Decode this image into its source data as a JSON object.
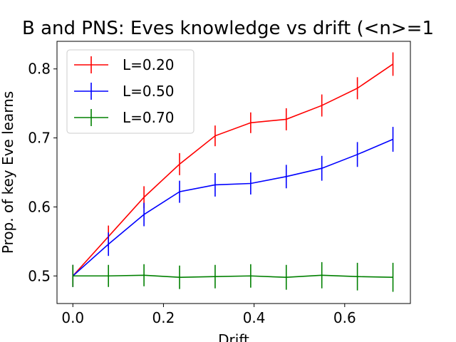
{
  "chart_data": {
    "type": "line",
    "title": "B and PNS: Eves knowledge vs drift (<n>=1",
    "xlabel": "Drift",
    "ylabel": "Prop. of key Eve learns",
    "xlim": [
      -0.035,
      0.745
    ],
    "ylim": [
      0.46,
      0.84
    ],
    "xticks": [
      0.0,
      0.2,
      0.4,
      0.6
    ],
    "yticks": [
      0.5,
      0.6,
      0.7,
      0.8
    ],
    "xtick_labels": [
      "0.0",
      "0.2",
      "0.4",
      "0.6"
    ],
    "ytick_labels": [
      "0.5",
      "0.6",
      "0.7",
      "0.8"
    ],
    "x": [
      0.0,
      0.0785,
      0.157,
      0.2355,
      0.314,
      0.3925,
      0.471,
      0.5495,
      0.628,
      0.7065
    ],
    "legend_position": "top-left",
    "grid": false,
    "series": [
      {
        "name": "L=0.20",
        "color": "#ff0000",
        "values": [
          0.5,
          0.557,
          0.614,
          0.662,
          0.703,
          0.722,
          0.727,
          0.747,
          0.772,
          0.807
        ],
        "errors": [
          0.016,
          0.016,
          0.016,
          0.016,
          0.015,
          0.015,
          0.016,
          0.016,
          0.016,
          0.017
        ]
      },
      {
        "name": "L=0.50",
        "color": "#0000ff",
        "values": [
          0.5,
          0.546,
          0.589,
          0.622,
          0.632,
          0.634,
          0.644,
          0.656,
          0.676,
          0.698
        ],
        "errors": [
          0.016,
          0.017,
          0.017,
          0.016,
          0.017,
          0.016,
          0.017,
          0.018,
          0.018,
          0.018
        ]
      },
      {
        "name": "L=0.70",
        "color": "#008000",
        "values": [
          0.5,
          0.5,
          0.501,
          0.498,
          0.499,
          0.5,
          0.498,
          0.501,
          0.499,
          0.498
        ],
        "errors": [
          0.016,
          0.016,
          0.016,
          0.017,
          0.017,
          0.017,
          0.018,
          0.019,
          0.02,
          0.021
        ]
      }
    ]
  }
}
